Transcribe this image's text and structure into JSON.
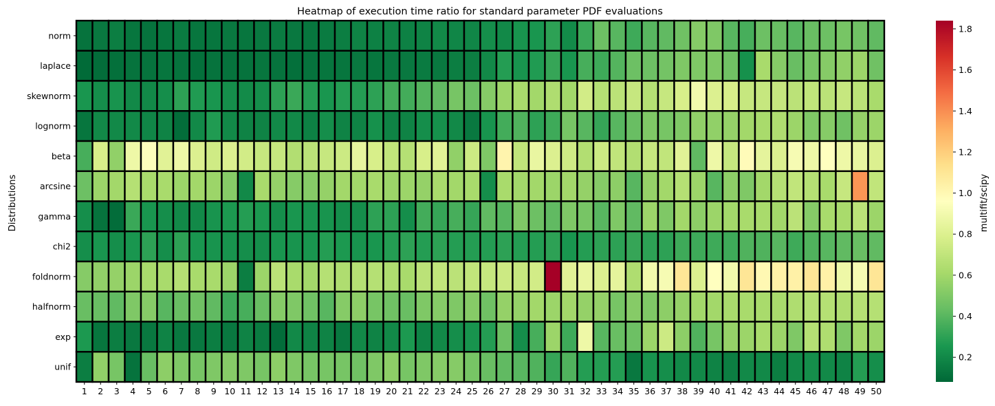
{
  "chart_data": {
    "type": "heatmap",
    "title": "Heatmap of execution time ratio for standard parameter PDF evaluations",
    "xlabel": "",
    "ylabel": "Distributions",
    "colorbar_label": "multifit/scipy",
    "colormap": "RdYlGn_r",
    "vmin": 0.08,
    "vmax": 1.84,
    "colorbar_ticks": [
      0.2,
      0.4,
      0.6,
      0.8,
      1.0,
      1.2,
      1.4,
      1.6,
      1.8
    ],
    "x_categories": [
      "1",
      "2",
      "3",
      "4",
      "5",
      "6",
      "7",
      "8",
      "9",
      "10",
      "11",
      "12",
      "13",
      "14",
      "15",
      "16",
      "17",
      "18",
      "19",
      "20",
      "21",
      "22",
      "23",
      "24",
      "25",
      "26",
      "27",
      "28",
      "29",
      "30",
      "31",
      "32",
      "33",
      "34",
      "35",
      "36",
      "37",
      "38",
      "39",
      "40",
      "41",
      "42",
      "43",
      "44",
      "45",
      "46",
      "47",
      "48",
      "49",
      "50"
    ],
    "y_categories": [
      "norm",
      "laplace",
      "skewnorm",
      "lognorm",
      "beta",
      "arcsine",
      "gamma",
      "chi2",
      "foldnorm",
      "halfnorm",
      "exp",
      "unif"
    ],
    "values": [
      [
        0.12,
        0.14,
        0.16,
        0.13,
        0.12,
        0.13,
        0.15,
        0.13,
        0.13,
        0.14,
        0.13,
        0.14,
        0.15,
        0.14,
        0.13,
        0.15,
        0.16,
        0.18,
        0.17,
        0.18,
        0.17,
        0.18,
        0.2,
        0.19,
        0.19,
        0.22,
        0.2,
        0.24,
        0.25,
        0.3,
        0.21,
        0.33,
        0.45,
        0.4,
        0.34,
        0.4,
        0.42,
        0.46,
        0.52,
        0.5,
        0.4,
        0.36,
        0.45,
        0.44,
        0.4,
        0.44,
        0.45,
        0.48,
        0.46,
        0.42
      ],
      [
        0.09,
        0.1,
        0.11,
        0.12,
        0.12,
        0.13,
        0.12,
        0.11,
        0.12,
        0.12,
        0.12,
        0.13,
        0.12,
        0.11,
        0.12,
        0.13,
        0.13,
        0.14,
        0.13,
        0.14,
        0.14,
        0.15,
        0.14,
        0.16,
        0.16,
        0.2,
        0.28,
        0.24,
        0.27,
        0.32,
        0.25,
        0.36,
        0.34,
        0.39,
        0.45,
        0.45,
        0.47,
        0.5,
        0.5,
        0.5,
        0.46,
        0.23,
        0.62,
        0.52,
        0.44,
        0.48,
        0.52,
        0.55,
        0.58,
        0.46
      ],
      [
        0.25,
        0.22,
        0.24,
        0.2,
        0.2,
        0.22,
        0.3,
        0.27,
        0.25,
        0.22,
        0.21,
        0.22,
        0.3,
        0.33,
        0.28,
        0.25,
        0.28,
        0.28,
        0.3,
        0.35,
        0.35,
        0.39,
        0.42,
        0.48,
        0.45,
        0.52,
        0.58,
        0.62,
        0.6,
        0.64,
        0.6,
        0.76,
        0.66,
        0.68,
        0.72,
        0.66,
        0.72,
        0.78,
        0.9,
        0.8,
        0.78,
        0.72,
        0.72,
        0.72,
        0.68,
        0.7,
        0.68,
        0.72,
        0.68,
        0.62
      ],
      [
        0.13,
        0.2,
        0.2,
        0.2,
        0.19,
        0.18,
        0.1,
        0.2,
        0.27,
        0.2,
        0.18,
        0.18,
        0.2,
        0.2,
        0.17,
        0.22,
        0.18,
        0.18,
        0.23,
        0.18,
        0.18,
        0.22,
        0.23,
        0.2,
        0.14,
        0.24,
        0.35,
        0.38,
        0.3,
        0.34,
        0.48,
        0.4,
        0.32,
        0.4,
        0.44,
        0.5,
        0.48,
        0.5,
        0.55,
        0.55,
        0.56,
        0.6,
        0.62,
        0.64,
        0.58,
        0.5,
        0.52,
        0.46,
        0.56,
        0.58
      ],
      [
        0.36,
        0.78,
        0.55,
        0.88,
        0.95,
        0.82,
        0.88,
        0.8,
        0.75,
        0.8,
        0.76,
        0.72,
        0.72,
        0.65,
        0.68,
        0.72,
        0.74,
        0.85,
        0.78,
        0.7,
        0.66,
        0.78,
        0.82,
        0.55,
        0.74,
        0.5,
        1.02,
        0.7,
        0.86,
        0.8,
        0.75,
        0.65,
        0.74,
        0.7,
        0.65,
        0.72,
        0.7,
        0.82,
        0.42,
        0.88,
        0.72,
        0.98,
        0.84,
        0.8,
        0.92,
        0.88,
        0.96,
        0.88,
        0.86,
        0.8
      ],
      [
        0.45,
        0.58,
        0.6,
        0.66,
        0.62,
        0.62,
        0.58,
        0.6,
        0.58,
        0.52,
        0.2,
        0.62,
        0.56,
        0.52,
        0.52,
        0.56,
        0.6,
        0.6,
        0.62,
        0.58,
        0.58,
        0.56,
        0.62,
        0.6,
        0.62,
        0.22,
        0.62,
        0.6,
        0.6,
        0.58,
        0.6,
        0.56,
        0.52,
        0.54,
        0.4,
        0.56,
        0.6,
        0.66,
        0.58,
        0.4,
        0.54,
        0.5,
        0.6,
        0.66,
        0.7,
        0.66,
        0.62,
        0.72,
        1.38,
        0.7
      ],
      [
        0.22,
        0.12,
        0.1,
        0.33,
        0.25,
        0.22,
        0.2,
        0.2,
        0.24,
        0.26,
        0.28,
        0.26,
        0.22,
        0.25,
        0.24,
        0.24,
        0.22,
        0.22,
        0.3,
        0.3,
        0.22,
        0.35,
        0.32,
        0.36,
        0.32,
        0.42,
        0.4,
        0.5,
        0.45,
        0.42,
        0.5,
        0.48,
        0.4,
        0.5,
        0.42,
        0.58,
        0.5,
        0.6,
        0.54,
        0.58,
        0.6,
        0.62,
        0.62,
        0.6,
        0.68,
        0.52,
        0.62,
        0.62,
        0.68,
        0.58
      ],
      [
        0.22,
        0.25,
        0.22,
        0.25,
        0.3,
        0.22,
        0.3,
        0.25,
        0.24,
        0.24,
        0.22,
        0.22,
        0.25,
        0.24,
        0.25,
        0.28,
        0.26,
        0.24,
        0.25,
        0.28,
        0.3,
        0.28,
        0.3,
        0.28,
        0.28,
        0.28,
        0.3,
        0.28,
        0.28,
        0.3,
        0.25,
        0.28,
        0.3,
        0.3,
        0.32,
        0.3,
        0.3,
        0.34,
        0.34,
        0.34,
        0.34,
        0.38,
        0.38,
        0.4,
        0.34,
        0.38,
        0.4,
        0.42,
        0.44,
        0.42
      ],
      [
        0.52,
        0.55,
        0.56,
        0.58,
        0.62,
        0.62,
        0.66,
        0.62,
        0.62,
        0.58,
        0.16,
        0.58,
        0.68,
        0.62,
        0.6,
        0.66,
        0.64,
        0.66,
        0.66,
        0.64,
        0.62,
        0.68,
        0.7,
        0.68,
        0.7,
        0.72,
        0.74,
        0.72,
        0.76,
        1.84,
        0.82,
        0.86,
        0.8,
        0.84,
        0.64,
        0.9,
        0.92,
        1.1,
        0.8,
        0.96,
        0.9,
        1.1,
        1.0,
        1.04,
        1.04,
        1.1,
        1.04,
        0.88,
        0.92,
        1.1
      ],
      [
        0.44,
        0.44,
        0.42,
        0.5,
        0.52,
        0.4,
        0.44,
        0.46,
        0.42,
        0.34,
        0.36,
        0.44,
        0.52,
        0.5,
        0.46,
        0.4,
        0.52,
        0.54,
        0.48,
        0.46,
        0.44,
        0.5,
        0.52,
        0.5,
        0.52,
        0.46,
        0.56,
        0.56,
        0.6,
        0.58,
        0.6,
        0.56,
        0.56,
        0.48,
        0.52,
        0.5,
        0.54,
        0.56,
        0.6,
        0.6,
        0.62,
        0.62,
        0.62,
        0.62,
        0.64,
        0.66,
        0.66,
        0.64,
        0.66,
        0.66
      ],
      [
        0.26,
        0.13,
        0.16,
        0.14,
        0.14,
        0.18,
        0.14,
        0.14,
        0.16,
        0.14,
        0.18,
        0.15,
        0.1,
        0.2,
        0.18,
        0.18,
        0.14,
        0.2,
        0.18,
        0.2,
        0.26,
        0.18,
        0.2,
        0.22,
        0.24,
        0.28,
        0.45,
        0.22,
        0.36,
        0.58,
        0.34,
        0.88,
        0.4,
        0.44,
        0.45,
        0.58,
        0.74,
        0.54,
        0.38,
        0.48,
        0.56,
        0.58,
        0.62,
        0.58,
        0.5,
        0.66,
        0.64,
        0.5,
        0.6,
        0.58
      ],
      [
        0.16,
        0.55,
        0.48,
        0.12,
        0.44,
        0.54,
        0.5,
        0.48,
        0.5,
        0.52,
        0.5,
        0.48,
        0.54,
        0.5,
        0.48,
        0.48,
        0.48,
        0.46,
        0.5,
        0.54,
        0.48,
        0.5,
        0.52,
        0.52,
        0.48,
        0.44,
        0.42,
        0.4,
        0.38,
        0.32,
        0.38,
        0.28,
        0.28,
        0.28,
        0.14,
        0.24,
        0.22,
        0.2,
        0.2,
        0.18,
        0.16,
        0.2,
        0.2,
        0.16,
        0.2,
        0.22,
        0.2,
        0.18,
        0.28,
        0.22
      ]
    ]
  }
}
